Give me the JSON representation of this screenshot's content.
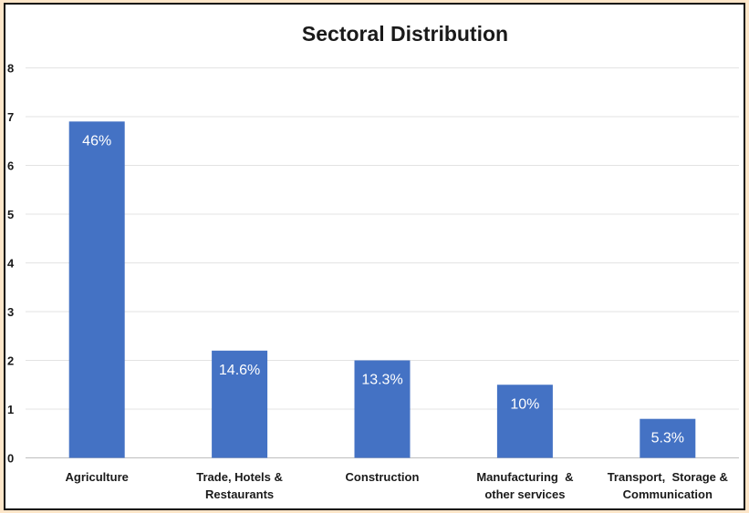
{
  "chart_data": {
    "type": "bar",
    "title": "Sectoral Distribution",
    "xlabel": "",
    "ylabel": "",
    "ylim": [
      0,
      8
    ],
    "yticks": [
      "0",
      "1",
      "2",
      "3",
      "4",
      "5",
      "6",
      "7",
      "8"
    ],
    "grid": true,
    "legend": "none",
    "bar_color": "#4472c4",
    "categories": [
      [
        "Agriculture"
      ],
      [
        "Trade, Hotels &",
        "Restaurants"
      ],
      [
        "Construction"
      ],
      [
        "Manufacturing  &",
        "other services"
      ],
      [
        "Transport,  Storage &",
        "Communication"
      ]
    ],
    "values": [
      6.9,
      2.2,
      2.0,
      1.5,
      0.8
    ],
    "data_labels": [
      "46%",
      "14.6%",
      "13.3%",
      "10%",
      "5.3%"
    ]
  }
}
